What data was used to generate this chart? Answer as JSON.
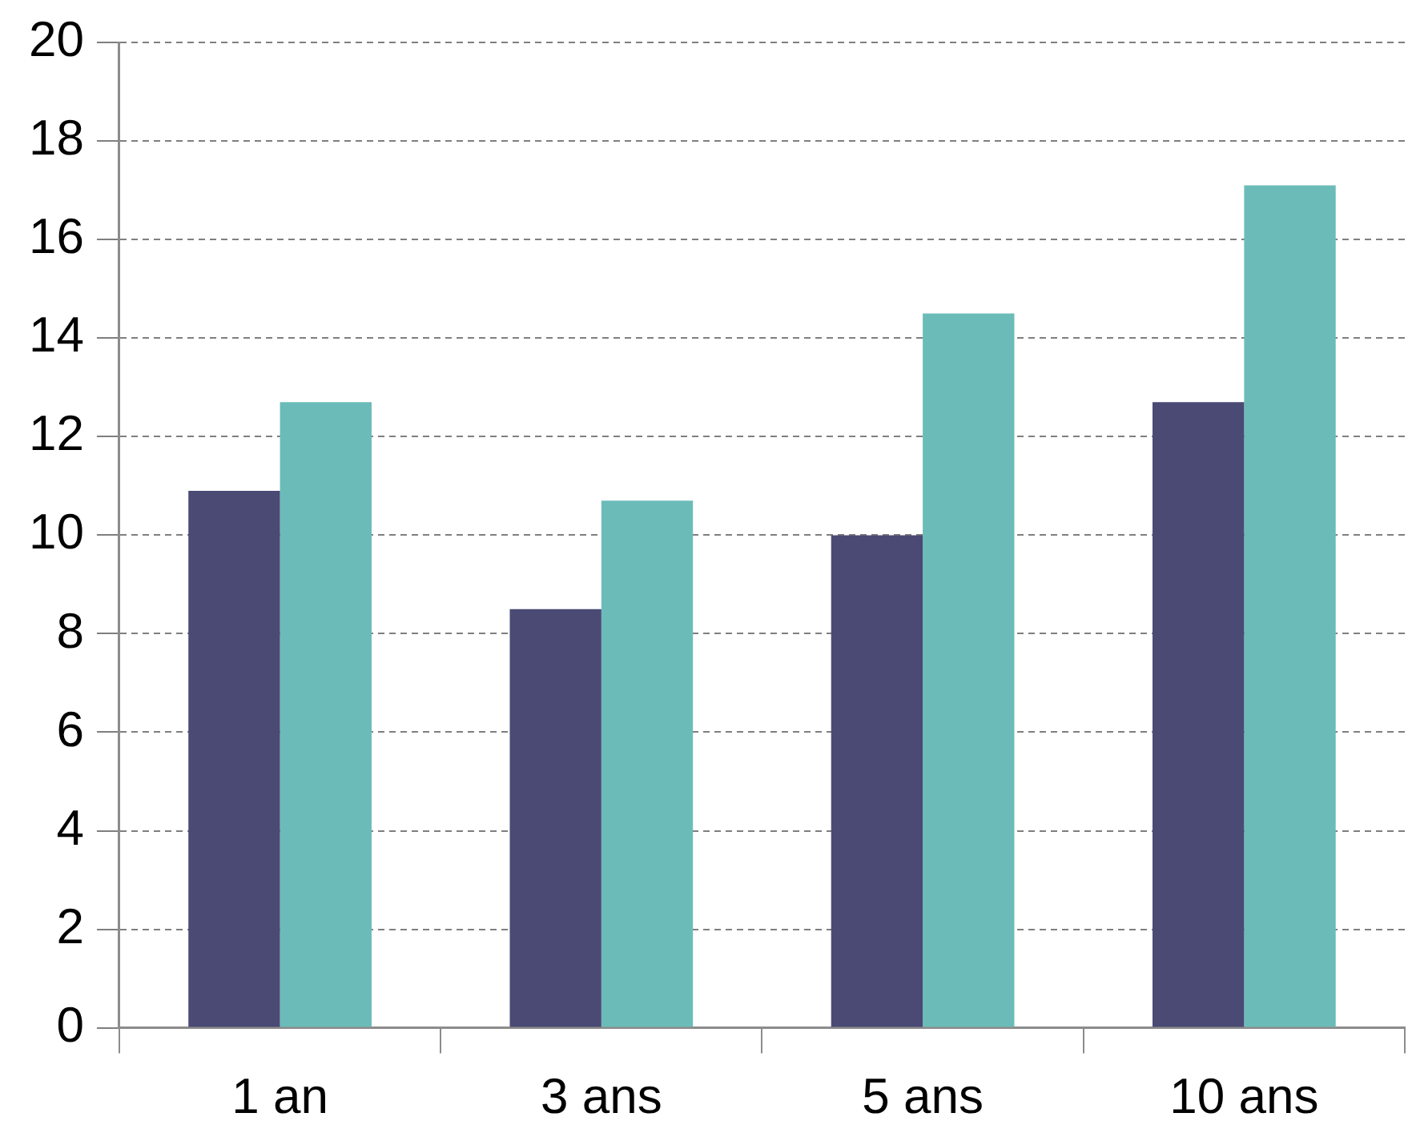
{
  "chart_data": {
    "type": "bar",
    "categories": [
      "1 an",
      "3 ans",
      "5 ans",
      "10 ans"
    ],
    "series": [
      {
        "color": "#4a4a75",
        "values": [
          10.9,
          8.5,
          10.0,
          12.7
        ]
      },
      {
        "color": "#6bbcb8",
        "values": [
          12.7,
          10.7,
          14.5,
          17.1
        ]
      }
    ],
    "ylim": [
      0,
      20
    ],
    "yticks": [
      0,
      2,
      4,
      6,
      8,
      10,
      12,
      14,
      16,
      18,
      20
    ],
    "grid": "y",
    "legend": false
  }
}
